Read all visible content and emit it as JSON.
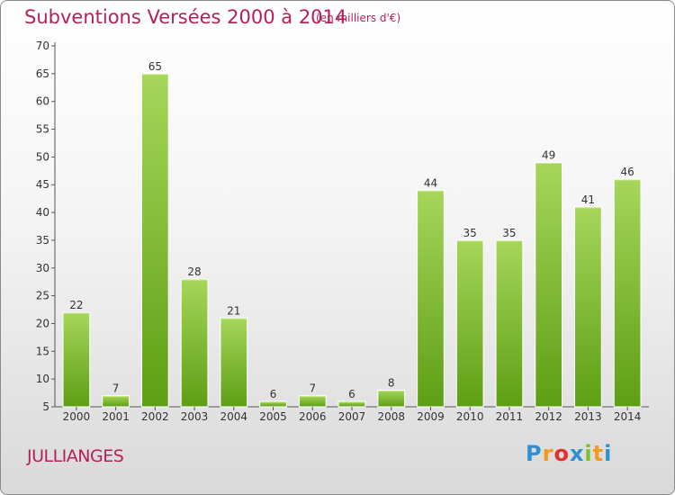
{
  "header": {
    "title": "Subventions Versées 2000 à 2014",
    "subtitle": "(en milliers d'€)"
  },
  "footer": {
    "city": "JULLIANGES",
    "logo_letters": [
      "P",
      "r",
      "o",
      "x",
      "i",
      "t",
      "i"
    ],
    "logo_colors": [
      "#2f8fd0",
      "#f39a1e",
      "#e2312d",
      "#2f8fd0",
      "#7bbf2a",
      "#f39a1e",
      "#2f8fd0"
    ]
  },
  "colors": {
    "bar_light": "#a6d65a",
    "bar_dark": "#5e9e14",
    "text": "#333333",
    "accent": "#b5205a"
  },
  "chart_data": {
    "type": "bar",
    "categories": [
      "2000",
      "2001",
      "2002",
      "2003",
      "2004",
      "2005",
      "2006",
      "2007",
      "2008",
      "2009",
      "2010",
      "2011",
      "2012",
      "2013",
      "2014"
    ],
    "values": [
      22,
      7,
      65,
      28,
      21,
      6,
      7,
      6,
      8,
      44,
      35,
      35,
      49,
      41,
      46
    ],
    "title": "Subventions Versées 2000 à 2014",
    "ylim": [
      5,
      70
    ],
    "yticks": [
      5,
      10,
      15,
      20,
      25,
      30,
      35,
      40,
      45,
      50,
      55,
      60,
      65,
      70
    ],
    "grid": false,
    "legend": "none"
  }
}
